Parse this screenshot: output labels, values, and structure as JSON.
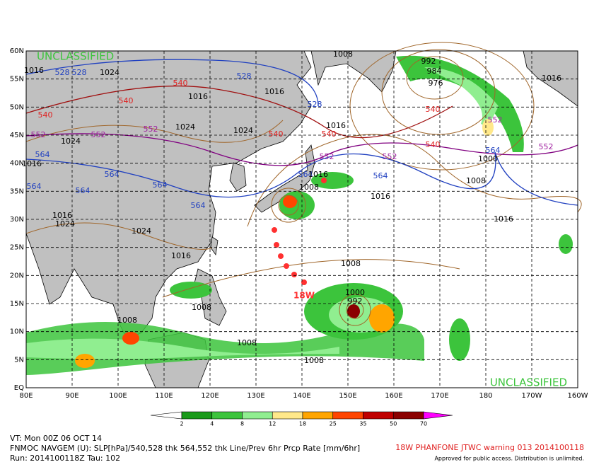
{
  "map": {
    "classification_top": "UNCLASSIFIED",
    "classification_bottom": "UNCLASSIFIED",
    "storm_label": "18W",
    "lat_labels": [
      "60N",
      "55N",
      "50N",
      "45N",
      "40N",
      "35N",
      "30N",
      "25N",
      "20N",
      "15N",
      "10N",
      "5N",
      "EQ"
    ],
    "lon_labels": [
      "80E",
      "90E",
      "100E",
      "110E",
      "120E",
      "130E",
      "140E",
      "150E",
      "160E",
      "170E",
      "180",
      "170W",
      "160W"
    ],
    "contour_labels": [
      "1016",
      "528",
      "528",
      "1024",
      "540",
      "1016",
      "528",
      "1016",
      "528",
      "540",
      "540",
      "1024",
      "1024",
      "540",
      "540",
      "1016",
      "552",
      "552",
      "552",
      "1024",
      "564",
      "1016",
      "552",
      "552",
      "540",
      "552",
      "564",
      "564",
      "564",
      "564",
      "564",
      "564",
      "1016",
      "564",
      "1016",
      "1008",
      "1000",
      "564",
      "992",
      "984",
      "976",
      "1016",
      "552",
      "1024",
      "1016",
      "1024",
      "1016",
      "1008",
      "1016",
      "1000",
      "992",
      "1008",
      "1008",
      "1008",
      "1008",
      "1008",
      "540",
      "1008"
    ]
  },
  "colorbar": {
    "labels": [
      "2",
      "4",
      "8",
      "12",
      "18",
      "25",
      "35",
      "50",
      "70"
    ],
    "colors": [
      "#1a9a1a",
      "#3cc43c",
      "#90ee90",
      "#ffe88a",
      "#ffa500",
      "#ff4500",
      "#c00000",
      "#8b0000"
    ],
    "low_color": "#ffffff",
    "high_color": "#ff00ff"
  },
  "footer": {
    "valid": "VT: Mon 00Z 06 OCT 14",
    "model": "FNMOC NAVGEM (U): SLP[hPa]/540,528 thk 564,552 thk Line/Prev 6hr Prcp Rate [mm/6hr]",
    "run": "Run: 2014100118Z Tau: 102",
    "warning": "18W PHANFONE JTWC warning 013 2014100118",
    "release": "Approved for public access. Distribution is unlimited."
  }
}
